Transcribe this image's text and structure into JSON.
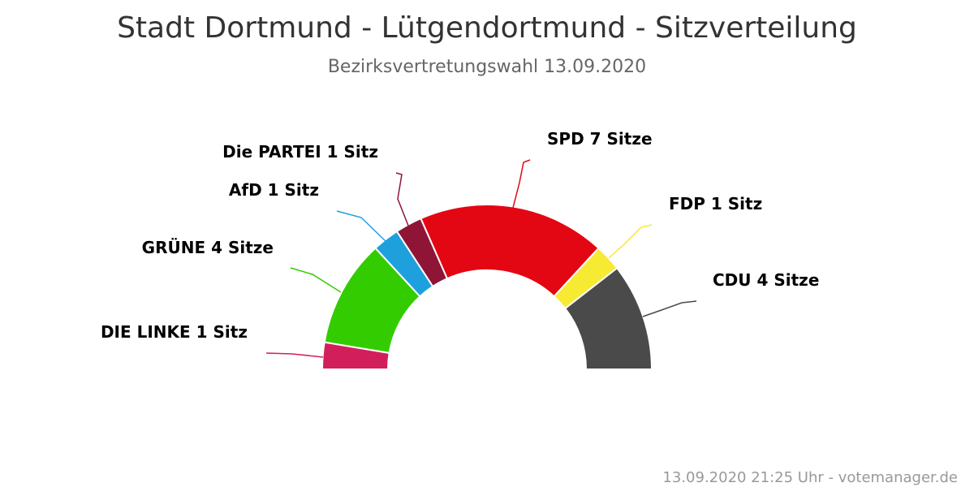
{
  "chart_data": {
    "type": "pie",
    "variant": "semi-donut",
    "title": "Stadt Dortmund - Lütgendortmund - Sitzverteilung",
    "subtitle": "Bezirksvertretungswahl 13.09.2020",
    "slices": [
      {
        "party": "DIE LINKE",
        "seats": 1,
        "label": "DIE LINKE 1 Sitz",
        "color": "#d21f5c"
      },
      {
        "party": "GRÜNE",
        "seats": 4,
        "label": "GRÜNE 4 Sitze",
        "color": "#33cc00"
      },
      {
        "party": "AfD",
        "seats": 1,
        "label": "AfD 1 Sitz",
        "color": "#1ea0dc"
      },
      {
        "party": "Die PARTEI",
        "seats": 1,
        "label": "Die PARTEI 1 Sitz",
        "color": "#8f1537"
      },
      {
        "party": "SPD",
        "seats": 7,
        "label": "SPD 7 Sitze",
        "color": "#e30613"
      },
      {
        "party": "FDP",
        "seats": 1,
        "label": "FDP 1 Sitz",
        "color": "#f7ea32"
      },
      {
        "party": "CDU",
        "seats": 4,
        "label": "CDU 4 Sitze",
        "color": "#4a4a4a"
      }
    ]
  },
  "footer": "13.09.2020 21:25 Uhr - votemanager.de"
}
